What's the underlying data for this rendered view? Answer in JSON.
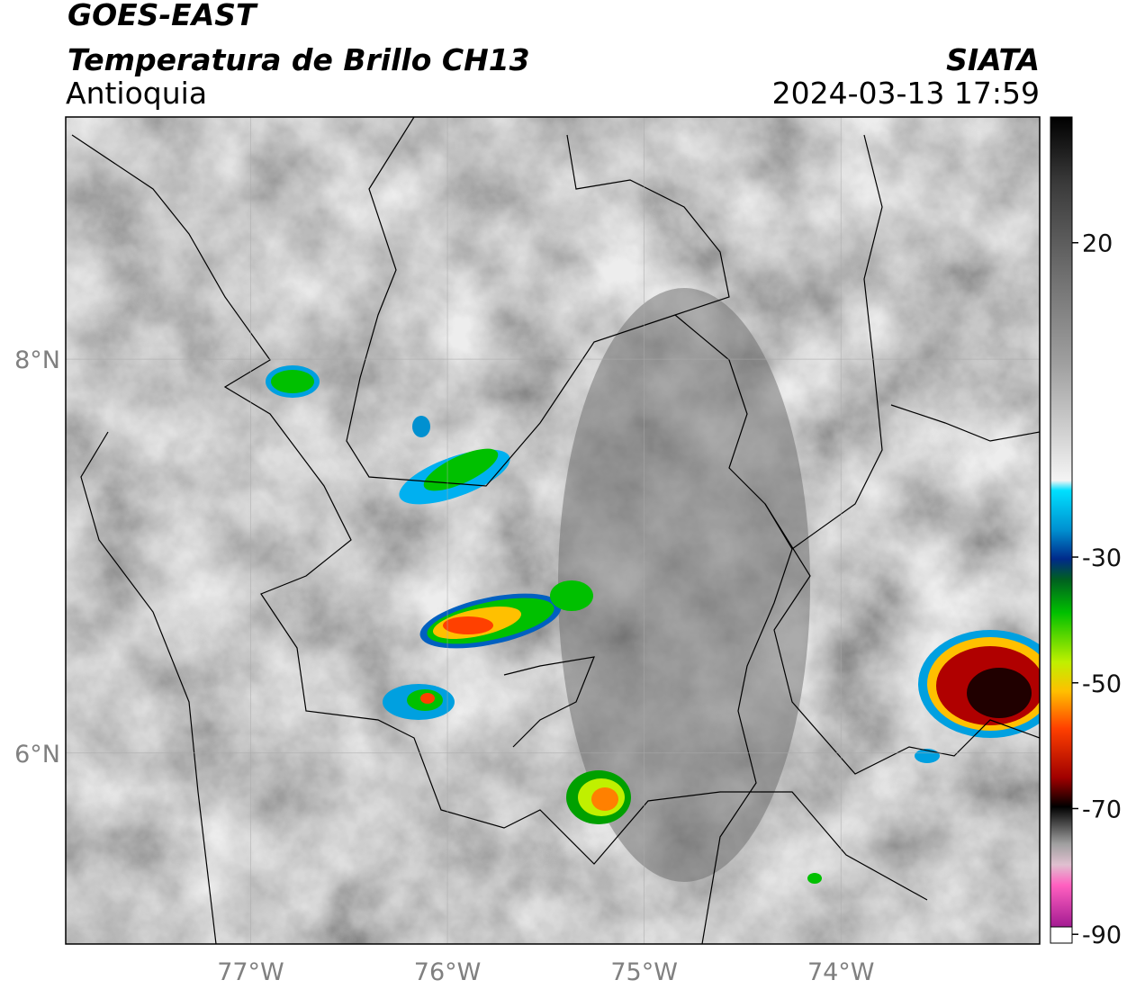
{
  "header": {
    "title": "GOES-EAST",
    "subtitle": "Temperatura de Brillo CH13",
    "region": "Antioquia",
    "source": "SIATA",
    "datetime": "2024-03-13 17:59"
  },
  "map": {
    "xlim": [
      -77.94,
      -72.99
    ],
    "ylim": [
      5.03,
      9.23
    ],
    "xticks": [
      {
        "value": -77,
        "label": "77°W"
      },
      {
        "value": -76,
        "label": "76°W"
      },
      {
        "value": -75,
        "label": "75°W"
      },
      {
        "value": -74,
        "label": "74°W"
      }
    ],
    "yticks": [
      {
        "value": 8,
        "label": "8°N"
      },
      {
        "value": 6,
        "label": "6°N"
      }
    ]
  },
  "colorbar": {
    "lim": [
      -91.4,
      40
    ],
    "ticks": [
      20,
      -30,
      -50,
      -70,
      -90
    ]
  }
}
